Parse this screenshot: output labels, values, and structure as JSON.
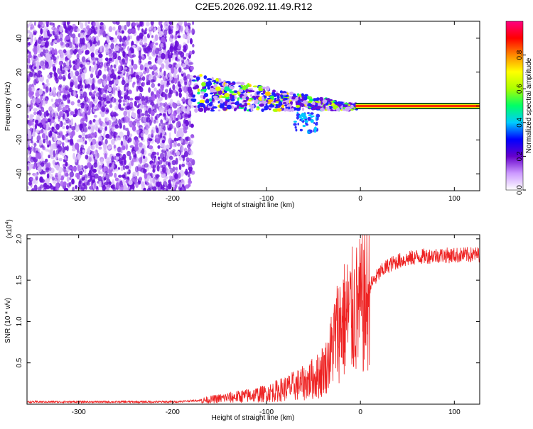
{
  "title": "C2E5.2026.092.11.49.R12",
  "spectrogram": {
    "type": "heatmap",
    "xlabel": "Height of straight line (km)",
    "ylabel": "Frequency (Hz)",
    "xlim": [
      -355,
      127
    ],
    "ylim": [
      -50,
      50
    ],
    "xticks": [
      -300,
      -200,
      -100,
      0,
      100
    ],
    "xtick_labels": [
      "-300",
      "-200",
      "-100",
      "0",
      "100"
    ],
    "yticks": [
      -40,
      -20,
      0,
      20,
      40
    ],
    "ytick_labels": [
      "-40",
      "-20",
      "0",
      "20",
      "40"
    ],
    "noise_region_end_km": -178,
    "carrier_frequency_hz": 0
  },
  "colorbar": {
    "label": "Normalized spectral amplitude",
    "ticks": [
      0.0,
      0.2,
      0.4,
      0.6,
      0.8
    ],
    "tick_labels": [
      "0.0",
      "0.2",
      "0.4",
      "0.6",
      "0.8"
    ],
    "range": [
      0,
      1
    ],
    "colors": [
      "#ffffff",
      "#cc99ff",
      "#6600cc",
      "#0000ff",
      "#00ccff",
      "#00ff66",
      "#aaff00",
      "#ffff00",
      "#ff8800",
      "#ff0000",
      "#ff0080"
    ]
  },
  "snr": {
    "type": "line",
    "xlabel": "Height of straight line (km)",
    "ylabel": "SNR (10 * v/v)",
    "scale_label": "(x10",
    "scale_exp": "4",
    "scale_close": ")",
    "xlim": [
      -355,
      127
    ],
    "ylim": [
      0,
      2.05
    ],
    "xticks": [
      -300,
      -200,
      -100,
      0,
      100
    ],
    "xtick_labels": [
      "-300",
      "-200",
      "-100",
      "0",
      "100"
    ],
    "yticks": [
      0.5,
      1.0,
      1.5,
      2.0
    ],
    "ytick_labels": [
      "0.5",
      "1.0",
      "1.5",
      "2.0"
    ],
    "color": "#ee2222",
    "envelope": {
      "x": [
        -355,
        -200,
        -170,
        -150,
        -120,
        -100,
        -80,
        -60,
        -45,
        -35,
        -28,
        -22,
        -15,
        -10,
        -5,
        0,
        10,
        20,
        30,
        40,
        60,
        80,
        100,
        127
      ],
      "y": [
        0.03,
        0.03,
        0.05,
        0.08,
        0.12,
        0.15,
        0.22,
        0.3,
        0.4,
        0.55,
        0.9,
        1.1,
        1.2,
        1.25,
        1.3,
        1.35,
        1.45,
        1.6,
        1.7,
        1.75,
        1.8,
        1.82,
        1.82,
        1.83
      ]
    }
  }
}
